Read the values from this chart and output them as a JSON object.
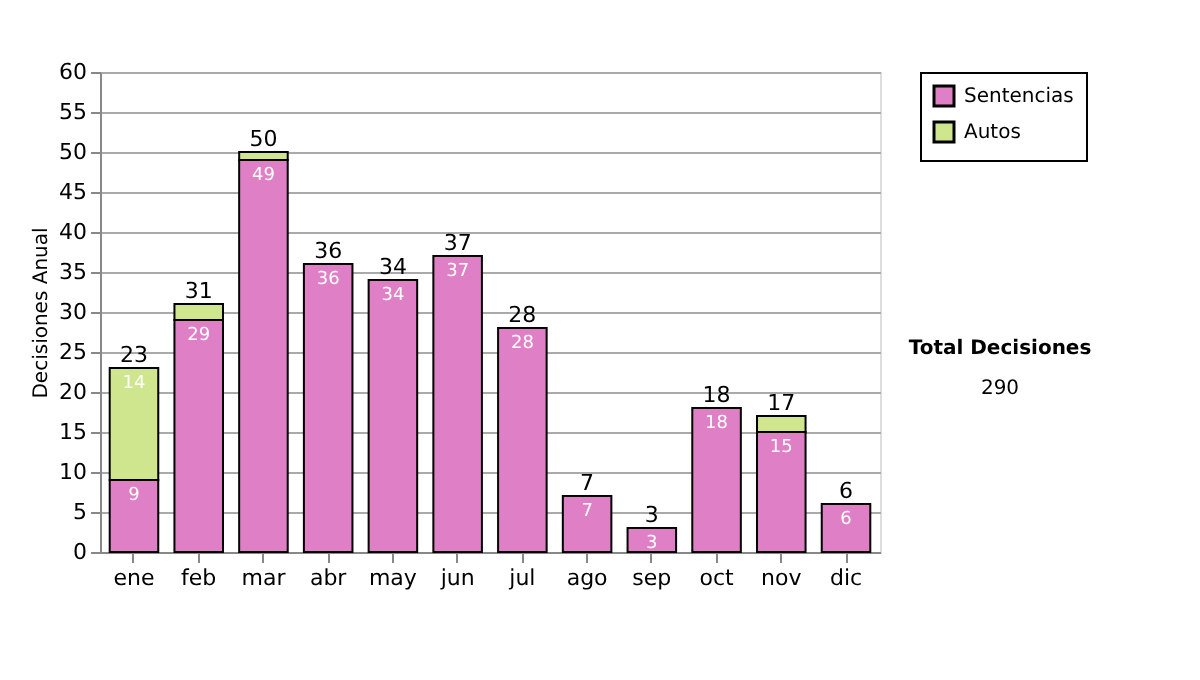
{
  "chart_data": {
    "type": "bar",
    "stacked": true,
    "ylabel": "Decisiones Anual",
    "categories": [
      "ene",
      "feb",
      "mar",
      "abr",
      "may",
      "jun",
      "jul",
      "ago",
      "sep",
      "oct",
      "nov",
      "dic"
    ],
    "series": [
      {
        "name": "Sentencias",
        "color": "#df7fc6",
        "values": [
          9,
          29,
          49,
          36,
          34,
          37,
          28,
          7,
          3,
          18,
          15,
          6
        ],
        "value_labels": [
          "9",
          "29",
          "49",
          "36",
          "34",
          "37",
          "28",
          "7",
          "3",
          "18",
          "15",
          "6"
        ]
      },
      {
        "name": "Autos",
        "color": "#cfe58e",
        "values": [
          14,
          2,
          1,
          null,
          null,
          null,
          null,
          null,
          null,
          null,
          2,
          null
        ],
        "value_labels": [
          "14",
          null,
          null,
          null,
          null,
          null,
          null,
          null,
          null,
          null,
          null,
          null
        ]
      }
    ],
    "totals": [
      "23",
      "31",
      "50",
      "36",
      "34",
      "37",
      "28",
      "7",
      "3",
      "18",
      "17",
      "6"
    ],
    "ylim": [
      0,
      60
    ],
    "yticks": [
      0,
      5,
      10,
      15,
      20,
      25,
      30,
      35,
      40,
      45,
      50,
      55,
      60
    ],
    "grid": "y",
    "legend": "right",
    "annotations": [
      "Total Decisiones",
      "290"
    ]
  }
}
